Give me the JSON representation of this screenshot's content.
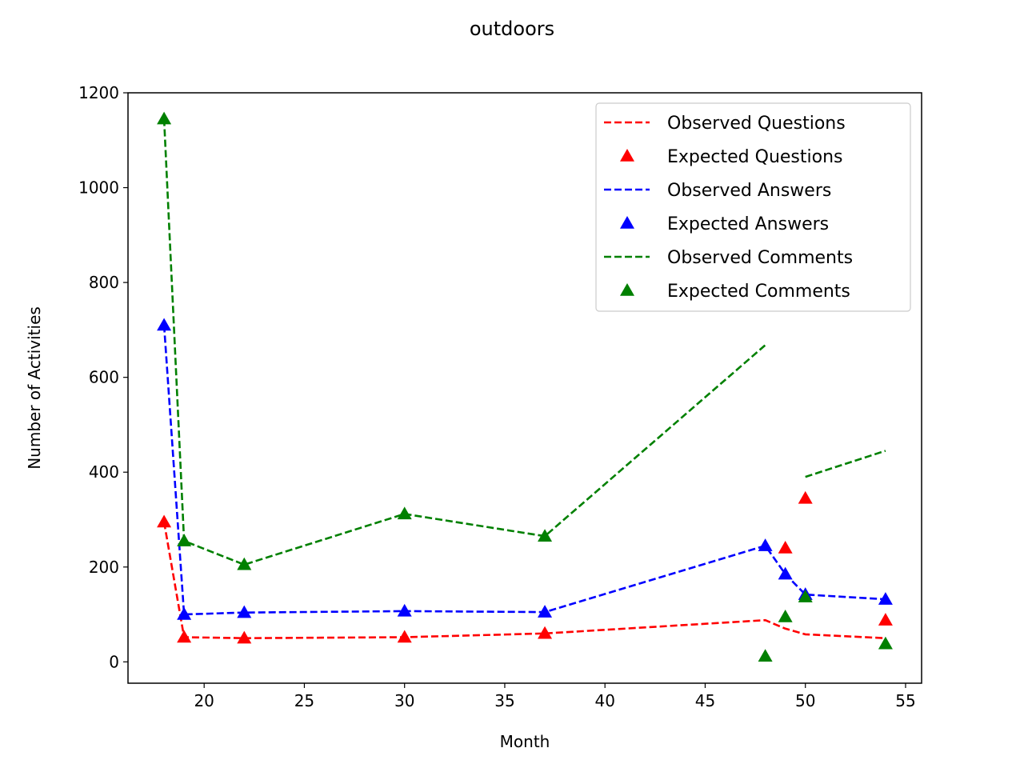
{
  "chart_data": {
    "type": "line",
    "title": "outdoors",
    "xlabel": "Month",
    "ylabel": "Number of Activities",
    "xlim": [
      16.2,
      55.8
    ],
    "ylim": [
      -45,
      1200
    ],
    "xticks": [
      20,
      25,
      30,
      35,
      40,
      45,
      50,
      55
    ],
    "yticks": [
      0,
      200,
      400,
      600,
      800,
      1000,
      1200
    ],
    "grid": false,
    "legend_position": "top-right",
    "x": [
      18,
      19,
      22,
      30,
      37,
      48,
      49,
      50,
      54
    ],
    "series": [
      {
        "name": "Observed Questions",
        "style": "dashed-line",
        "color": "#ff0000",
        "values": [
          295,
          52,
          50,
          52,
          60,
          88,
          70,
          58,
          50
        ]
      },
      {
        "name": "Expected Questions",
        "style": "triangle-marker",
        "color": "#ff0000",
        "values": [
          295,
          52,
          50,
          52,
          60,
          null,
          240,
          345,
          88
        ]
      },
      {
        "name": "Observed Answers",
        "style": "dashed-line",
        "color": "#0000ff",
        "values": [
          710,
          100,
          104,
          107,
          105,
          245,
          185,
          142,
          132
        ]
      },
      {
        "name": "Expected Answers",
        "style": "triangle-marker",
        "color": "#0000ff",
        "values": [
          710,
          100,
          104,
          107,
          105,
          245,
          185,
          142,
          132
        ]
      },
      {
        "name": "Observed Comments",
        "style": "dashed-line",
        "color": "#008000",
        "values": [
          1145,
          255,
          205,
          312,
          265,
          668,
          null,
          390,
          445
        ]
      },
      {
        "name": "Expected Comments",
        "style": "triangle-marker",
        "color": "#008000",
        "values": [
          1145,
          255,
          205,
          312,
          265,
          12,
          95,
          137,
          38
        ]
      }
    ]
  }
}
